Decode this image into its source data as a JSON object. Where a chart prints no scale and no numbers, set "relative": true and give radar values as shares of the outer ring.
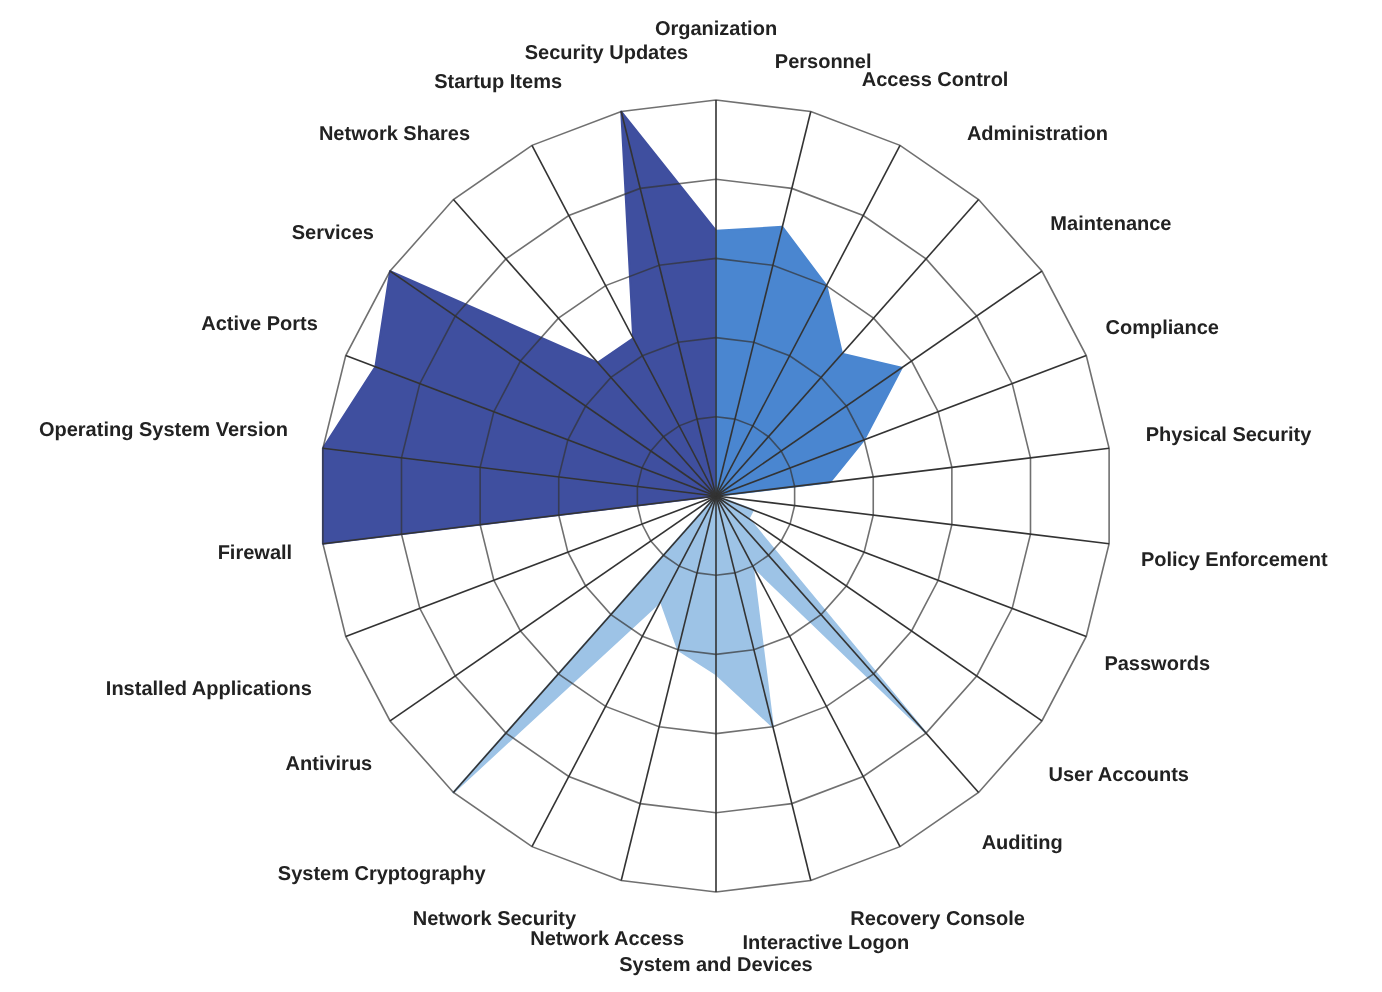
{
  "chart_data": {
    "type": "radar",
    "relative": true,
    "grid": true,
    "legend": false,
    "categories": [
      "Organization",
      "Personnel",
      "Access Control",
      "Administration",
      "Maintenance",
      "Compliance",
      "Physical Security",
      "Policy Enforcement",
      "Passwords",
      "User Accounts",
      "Auditing",
      "Recovery Console",
      "Interactive Logon",
      "System and Devices",
      "Network Access",
      "Network Security",
      "System Cryptography",
      "Antivirus",
      "Installed Applications",
      "Firewall",
      "Operating System Version",
      "Active Ports",
      "Services",
      "Network Shares",
      "Startup Items",
      "Security Updates"
    ],
    "series": [
      {
        "color": "#3f4f9f",
        "values": [
          0.67,
          0,
          0,
          0,
          0,
          0,
          0,
          0,
          0,
          0,
          0,
          0,
          0,
          0,
          0,
          0,
          0,
          0,
          0,
          1,
          1,
          0.92,
          1,
          0.45,
          0.45,
          1
        ]
      },
      {
        "color": "#4a86d0",
        "values": [
          0.67,
          0.7,
          0.6,
          0.48,
          0.57,
          0.4,
          0.29,
          0,
          0,
          0,
          0,
          0,
          0,
          0,
          0,
          0,
          0,
          0,
          0,
          0,
          0,
          0,
          0,
          0,
          0,
          0
        ]
      },
      {
        "color": "#9dc3e6",
        "values": [
          0,
          0,
          0,
          0,
          0,
          0,
          0,
          0,
          0.1,
          0.1,
          0.8,
          0.2,
          0.6,
          0.45,
          0.4,
          0.3,
          1,
          0,
          0,
          0,
          0,
          0,
          0,
          0,
          0,
          0
        ]
      }
    ]
  }
}
